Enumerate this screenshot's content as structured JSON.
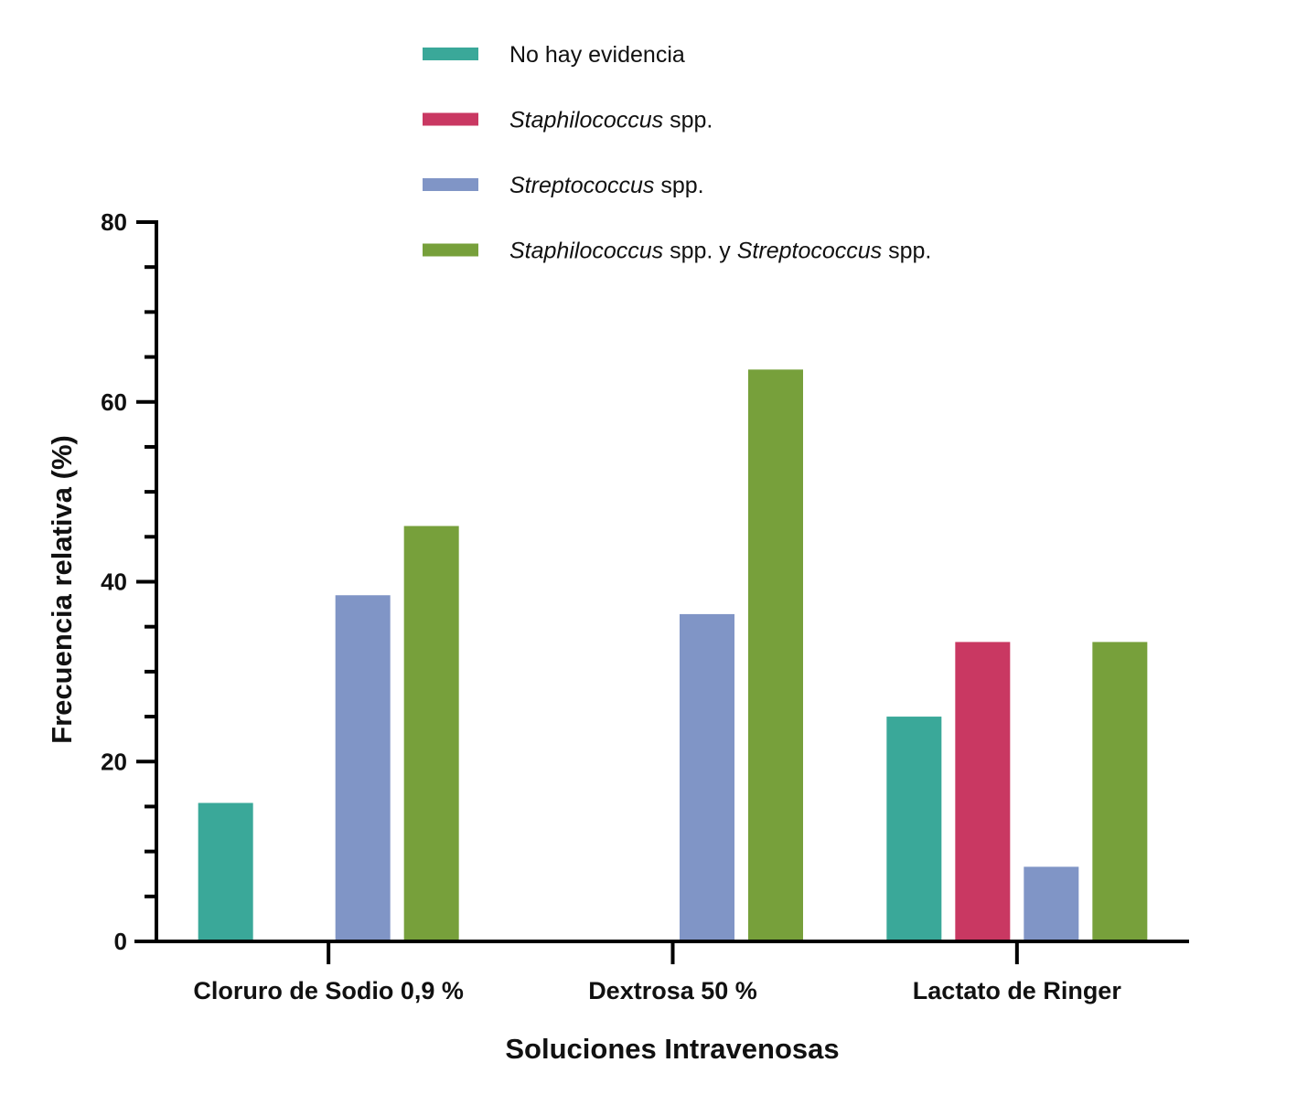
{
  "chart_data": {
    "type": "bar",
    "title": "",
    "xlabel": "Soluciones Intravenosas",
    "ylabel": "Frecuencia relativa (%)",
    "ylim": [
      0,
      80
    ],
    "yticks": [
      0,
      20,
      40,
      60,
      80
    ],
    "categories": [
      "Cloruro de Sodio 0,9 %",
      "Dextrosa 50 %",
      "Lactato de Ringer"
    ],
    "series": [
      {
        "name": "No hay evidencia",
        "color": "#3aa899",
        "values": [
          15.4,
          0,
          25.0
        ]
      },
      {
        "name": "Staphilococcus spp.",
        "color": "#c93862",
        "values": [
          0,
          0,
          33.3
        ]
      },
      {
        "name": "Streptococcus spp.",
        "color": "#8095c6",
        "values": [
          38.5,
          36.4,
          8.3
        ]
      },
      {
        "name": "Staphilococcus spp. y Streptococcus spp.",
        "color": "#77a03b",
        "values": [
          46.2,
          63.6,
          33.3
        ]
      }
    ],
    "legend": {
      "position": "top-center",
      "entries": [
        {
          "parts": [
            {
              "text": "No hay evidencia",
              "italic": false
            }
          ]
        },
        {
          "parts": [
            {
              "text": "Staphilococcus",
              "italic": true
            },
            {
              "text": " spp.",
              "italic": false
            }
          ]
        },
        {
          "parts": [
            {
              "text": "Streptococcus",
              "italic": true
            },
            {
              "text": " spp.",
              "italic": false
            }
          ]
        },
        {
          "parts": [
            {
              "text": "Staphilococcus",
              "italic": true
            },
            {
              "text": " spp. y ",
              "italic": false
            },
            {
              "text": "Streptococcus",
              "italic": true
            },
            {
              "text": " spp.",
              "italic": false
            }
          ]
        }
      ]
    }
  }
}
